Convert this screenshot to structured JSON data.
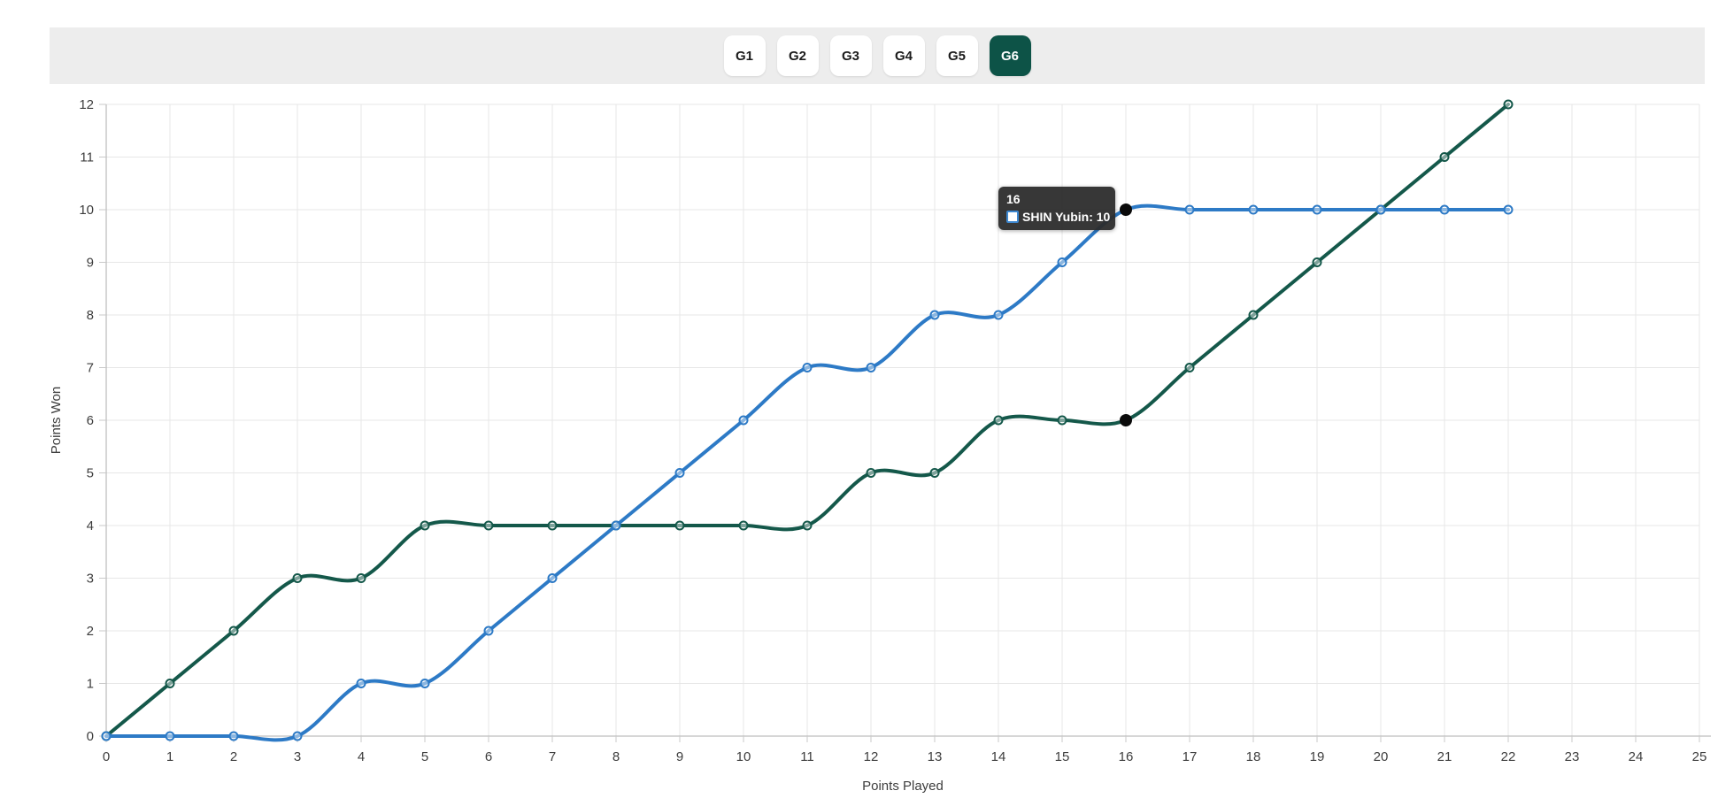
{
  "toolbar": {
    "buttons": [
      {
        "label": "G1",
        "selected": false
      },
      {
        "label": "G2",
        "selected": false
      },
      {
        "label": "G3",
        "selected": false
      },
      {
        "label": "G4",
        "selected": false
      },
      {
        "label": "G5",
        "selected": false
      },
      {
        "label": "G6",
        "selected": true
      }
    ],
    "selected_color": "#0d5347"
  },
  "tooltip": {
    "header": "16",
    "series_name": "SHIN Yubin",
    "value": "10",
    "text": "SHIN Yubin: 10",
    "swatch_border_color": "#3d87cf",
    "background_color": "#2c2c2c"
  },
  "chart_data": {
    "type": "line",
    "title": "",
    "xlabel": "Points Played",
    "ylabel": "Points Won",
    "xlim": [
      0,
      25
    ],
    "ylim": [
      0,
      12
    ],
    "x_ticks": [
      0,
      1,
      2,
      3,
      4,
      5,
      6,
      7,
      8,
      9,
      10,
      11,
      12,
      13,
      14,
      15,
      16,
      17,
      18,
      19,
      20,
      21,
      22,
      23,
      24,
      25
    ],
    "y_ticks": [
      0,
      1,
      2,
      3,
      4,
      5,
      6,
      7,
      8,
      9,
      10,
      11,
      12
    ],
    "grid": true,
    "legend_position": "none",
    "smoothing": "catmull-rom",
    "x": [
      0,
      1,
      2,
      3,
      4,
      5,
      6,
      7,
      8,
      9,
      10,
      11,
      12,
      13,
      14,
      15,
      16,
      17,
      18,
      19,
      20,
      21,
      22
    ],
    "series": [
      {
        "name": "SHIN Yubin",
        "color": "#2d7ac6",
        "values": [
          0,
          0,
          0,
          0,
          1,
          1,
          2,
          3,
          4,
          5,
          6,
          7,
          7,
          8,
          8,
          9,
          10,
          10,
          10,
          10,
          10,
          10,
          10
        ]
      },
      {
        "name": "",
        "color": "#14584a",
        "values": [
          0,
          1,
          2,
          3,
          3,
          4,
          4,
          4,
          4,
          4,
          4,
          4,
          5,
          5,
          6,
          6,
          6,
          7,
          8,
          9,
          10,
          11,
          12
        ]
      }
    ],
    "highlights": [
      {
        "series": 0,
        "x": 16,
        "y": 10
      },
      {
        "series": 1,
        "x": 16,
        "y": 6
      }
    ],
    "highlight_color": "#0a0a0a",
    "grid_color": "#e7e7e7",
    "axis_color": "#adadad",
    "tick_color": "#c9c9c9",
    "tick_label_color": "#3d3d3d"
  }
}
